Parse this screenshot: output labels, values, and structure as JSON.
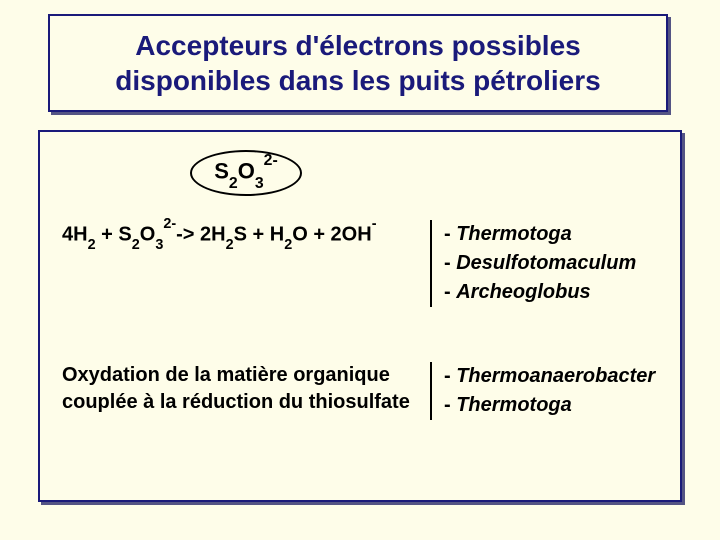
{
  "colors": {
    "background": "#fefde9",
    "border": "#1a1a7a",
    "shadow": "#545484",
    "text_title": "#1a1a7a",
    "text_body": "#000000",
    "oval_border": "#000000"
  },
  "typography": {
    "family": "Comic Sans MS",
    "title_fontsize": 28,
    "body_fontsize": 20,
    "weight": "bold"
  },
  "title": "Accepteurs d'électrons possibles disponibles dans les puits pétroliers",
  "compound_oval": {
    "html": "S<sub>2</sub>O<sub>3</sub><sup>2-</sup>"
  },
  "rows": [
    {
      "left_html": "4H<sub>2</sub> + S<sub>2</sub>O<sub>3</sub><sup>2-</sup>-> 2H<sub>2</sub>S + H<sub>2</sub>O + 2OH<sup>-</sup>",
      "right_items": [
        "- <span class=\"genus\">Thermotoga</span>",
        "- <span class=\"genus\">Desulfotomaculum</span>",
        "- <span class=\"genus\">Archeoglobus</span>"
      ]
    },
    {
      "left_html": "Oxydation de la matière organique couplée à la réduction du thiosulfate",
      "right_items": [
        "- <span class=\"genus\">Thermoanaerobacter</span>",
        "- <span class=\"genus\">Thermotoga</span>"
      ]
    }
  ]
}
